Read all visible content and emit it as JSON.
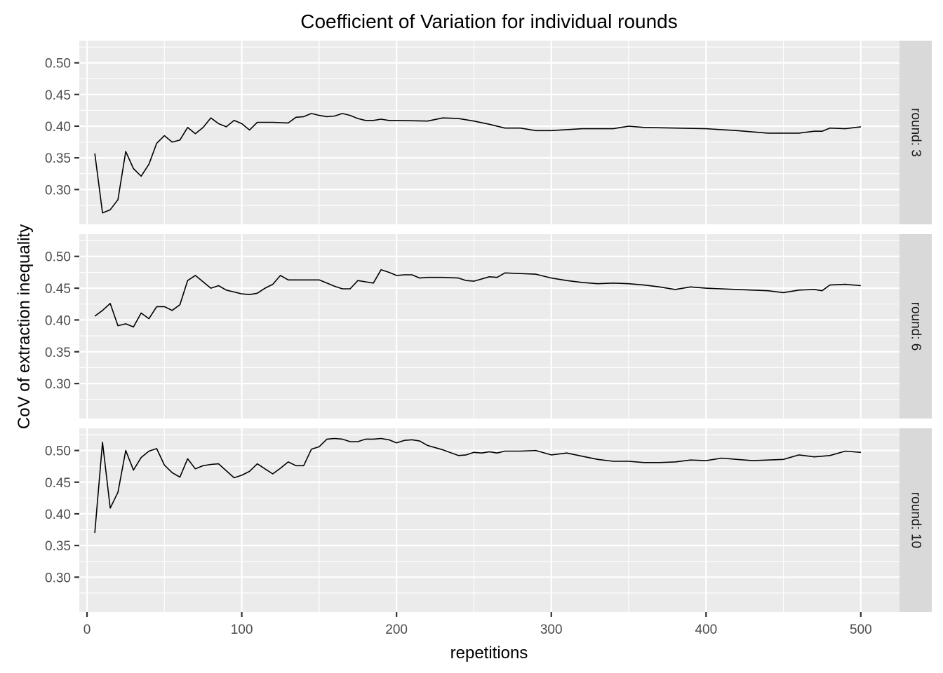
{
  "chart_data": {
    "type": "line",
    "title": "Coefficient of Variation for individual rounds",
    "xlabel": "repetitions",
    "ylabel": "CoV of extraction inequality",
    "xlim": [
      -5,
      525
    ],
    "ylim": [
      0.245,
      0.535
    ],
    "x_ticks": [
      0,
      100,
      200,
      300,
      400,
      500
    ],
    "x_tick_labels": [
      "0",
      "100",
      "200",
      "300",
      "400",
      "500"
    ],
    "y_ticks": [
      0.3,
      0.35,
      0.4,
      0.45,
      0.5
    ],
    "y_tick_labels": [
      "0.30",
      "0.35",
      "0.40",
      "0.45",
      "0.50"
    ],
    "grid": true,
    "legend": "none",
    "facets": [
      {
        "strip_label": "round: 3",
        "x": [
          5,
          10,
          15,
          20,
          25,
          30,
          35,
          40,
          45,
          50,
          55,
          60,
          65,
          70,
          75,
          80,
          85,
          90,
          95,
          100,
          105,
          110,
          120,
          130,
          135,
          140,
          145,
          150,
          155,
          160,
          165,
          170,
          175,
          180,
          185,
          190,
          195,
          200,
          220,
          230,
          240,
          250,
          260,
          270,
          280,
          290,
          300,
          320,
          340,
          350,
          360,
          380,
          400,
          420,
          440,
          460,
          470,
          475,
          480,
          490,
          500
        ],
        "y": [
          0.357,
          0.263,
          0.268,
          0.284,
          0.36,
          0.333,
          0.321,
          0.34,
          0.373,
          0.385,
          0.375,
          0.378,
          0.398,
          0.388,
          0.398,
          0.413,
          0.404,
          0.399,
          0.409,
          0.404,
          0.394,
          0.406,
          0.406,
          0.405,
          0.414,
          0.415,
          0.42,
          0.417,
          0.415,
          0.416,
          0.42,
          0.417,
          0.412,
          0.409,
          0.409,
          0.411,
          0.409,
          0.409,
          0.408,
          0.413,
          0.412,
          0.408,
          0.403,
          0.397,
          0.397,
          0.393,
          0.393,
          0.396,
          0.396,
          0.4,
          0.398,
          0.397,
          0.396,
          0.393,
          0.389,
          0.389,
          0.392,
          0.392,
          0.397,
          0.396,
          0.399
        ]
      },
      {
        "strip_label": "round: 6",
        "x": [
          5,
          10,
          15,
          20,
          25,
          30,
          35,
          40,
          45,
          50,
          55,
          60,
          65,
          70,
          75,
          80,
          85,
          90,
          95,
          100,
          105,
          110,
          115,
          120,
          125,
          130,
          140,
          150,
          155,
          160,
          165,
          170,
          175,
          180,
          185,
          190,
          195,
          200,
          205,
          210,
          215,
          220,
          230,
          240,
          245,
          250,
          260,
          265,
          270,
          280,
          290,
          300,
          310,
          320,
          330,
          340,
          350,
          360,
          370,
          380,
          390,
          400,
          420,
          440,
          450,
          460,
          470,
          475,
          480,
          490,
          500
        ],
        "y": [
          0.406,
          0.415,
          0.426,
          0.391,
          0.394,
          0.389,
          0.411,
          0.402,
          0.421,
          0.421,
          0.415,
          0.424,
          0.462,
          0.47,
          0.46,
          0.45,
          0.454,
          0.447,
          0.444,
          0.441,
          0.44,
          0.442,
          0.45,
          0.456,
          0.47,
          0.463,
          0.463,
          0.463,
          0.458,
          0.453,
          0.449,
          0.449,
          0.462,
          0.46,
          0.458,
          0.479,
          0.475,
          0.47,
          0.471,
          0.471,
          0.466,
          0.467,
          0.467,
          0.466,
          0.462,
          0.461,
          0.468,
          0.467,
          0.474,
          0.473,
          0.472,
          0.466,
          0.462,
          0.459,
          0.457,
          0.458,
          0.457,
          0.455,
          0.452,
          0.448,
          0.452,
          0.45,
          0.448,
          0.446,
          0.443,
          0.447,
          0.448,
          0.446,
          0.455,
          0.456,
          0.454
        ]
      },
      {
        "strip_label": "round: 10",
        "x": [
          5,
          10,
          15,
          20,
          25,
          30,
          35,
          40,
          45,
          50,
          55,
          60,
          65,
          70,
          75,
          80,
          85,
          90,
          95,
          100,
          105,
          110,
          115,
          120,
          125,
          130,
          135,
          140,
          145,
          150,
          155,
          160,
          165,
          170,
          175,
          180,
          185,
          190,
          195,
          200,
          205,
          210,
          215,
          220,
          230,
          240,
          245,
          250,
          255,
          260,
          265,
          270,
          280,
          290,
          300,
          310,
          320,
          330,
          340,
          350,
          360,
          370,
          380,
          390,
          400,
          410,
          420,
          430,
          440,
          450,
          460,
          470,
          480,
          490,
          500
        ],
        "y": [
          0.37,
          0.513,
          0.409,
          0.434,
          0.5,
          0.469,
          0.489,
          0.499,
          0.503,
          0.477,
          0.465,
          0.458,
          0.487,
          0.471,
          0.476,
          0.478,
          0.479,
          0.468,
          0.457,
          0.461,
          0.467,
          0.479,
          0.471,
          0.463,
          0.472,
          0.482,
          0.476,
          0.476,
          0.502,
          0.506,
          0.518,
          0.519,
          0.518,
          0.514,
          0.514,
          0.518,
          0.518,
          0.519,
          0.517,
          0.512,
          0.516,
          0.517,
          0.515,
          0.508,
          0.501,
          0.492,
          0.493,
          0.497,
          0.496,
          0.498,
          0.496,
          0.499,
          0.499,
          0.5,
          0.493,
          0.496,
          0.491,
          0.486,
          0.483,
          0.483,
          0.481,
          0.481,
          0.482,
          0.485,
          0.484,
          0.488,
          0.486,
          0.484,
          0.485,
          0.486,
          0.493,
          0.49,
          0.492,
          0.499,
          0.497
        ]
      }
    ]
  }
}
